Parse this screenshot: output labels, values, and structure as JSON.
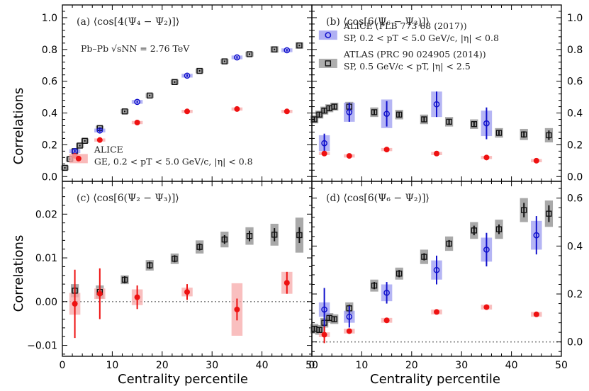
{
  "figure": {
    "xlabel": "Centrality percentile",
    "ylabel": "Correlations"
  },
  "chart_data": [
    {
      "id": "a",
      "type": "scatter",
      "title": "(a) ⟨cos[4(Ψ₄ − Ψ₂)]⟩",
      "annotation": "Pb–Pb √sNN = 2.76 TeV",
      "xlim": [
        0,
        50
      ],
      "ylim": [
        -0.03,
        1.08
      ],
      "yticks": [
        0.0,
        0.2,
        0.4,
        0.6,
        0.8,
        1.0
      ],
      "ytick_labels": [
        "0.0",
        "0.2",
        "0.4",
        "0.6",
        "0.8",
        "1.0"
      ],
      "yaxis_side": "left",
      "legend": [
        {
          "series": "ALICE GE",
          "line1": "ALICE",
          "line2": "GE, 0.2 < pT < 5.0 GeV/c, |η| < 0.8"
        }
      ],
      "series": [
        {
          "name": "ALICE GE",
          "marker": "filled-circle",
          "color": "#ee1111",
          "x": [
            2.5,
            7.5,
            15,
            25,
            35,
            45
          ],
          "y": [
            0.13,
            0.23,
            0.34,
            0.41,
            0.425,
            0.41
          ],
          "err": [
            0.005,
            0.005,
            0.005,
            0.005,
            0.005,
            0.005
          ],
          "sys": [
            0.01,
            0.01,
            0.01,
            0.01,
            0.01,
            0.01
          ]
        },
        {
          "name": "ALICE SP",
          "marker": "open-circle",
          "color": "#1111cc",
          "x": [
            2.5,
            7.5,
            15,
            25,
            35,
            45
          ],
          "y": [
            0.16,
            0.29,
            0.47,
            0.635,
            0.75,
            0.795
          ],
          "err": [
            0.01,
            0.01,
            0.008,
            0.008,
            0.008,
            0.008
          ],
          "sys": [
            0.012,
            0.012,
            0.012,
            0.012,
            0.012,
            0.012
          ]
        },
        {
          "name": "ATLAS SP",
          "marker": "open-square",
          "color": "#111111",
          "x": [
            0.5,
            1.5,
            2.5,
            3.5,
            4.5,
            7.5,
            12.5,
            17.5,
            22.5,
            27.5,
            32.5,
            37.5,
            42.5,
            47.5
          ],
          "y": [
            0.055,
            0.11,
            0.16,
            0.195,
            0.225,
            0.305,
            0.41,
            0.51,
            0.595,
            0.665,
            0.725,
            0.77,
            0.8,
            0.825
          ],
          "err": [
            0.005,
            0.005,
            0.005,
            0.005,
            0.005,
            0.005,
            0.005,
            0.005,
            0.005,
            0.005,
            0.005,
            0.005,
            0.005,
            0.005
          ],
          "sys": [
            0.015,
            0.015,
            0.015,
            0.015,
            0.015,
            0.015,
            0.015,
            0.015,
            0.015,
            0.015,
            0.015,
            0.015,
            0.02,
            0.02
          ]
        }
      ]
    },
    {
      "id": "b",
      "type": "scatter",
      "title": "(b) ⟨cos[6(Ψ₆ − Ψ₃)]⟩",
      "xlim": [
        0,
        50
      ],
      "ylim": [
        -0.03,
        1.08
      ],
      "yticks": [
        0.0,
        0.2,
        0.4,
        0.6,
        0.8,
        1.0
      ],
      "ytick_labels": [
        "0.0",
        "0.2",
        "0.4",
        "0.6",
        "0.8",
        "1.0"
      ],
      "yaxis_side": "right",
      "legend": [
        {
          "series": "ALICE SP",
          "line1": "ALICE (PLB 773 68 (2017))",
          "line2": "SP, 0.2 < pT < 5.0 GeV/c, |η| < 0.8"
        },
        {
          "series": "ATLAS SP",
          "line1": "ATLAS (PRC 90 024905 (2014))",
          "line2": "SP, 0.5 GeV/c < pT, |η| < 2.5"
        }
      ],
      "series": [
        {
          "name": "ALICE GE",
          "marker": "filled-circle",
          "color": "#ee1111",
          "x": [
            2.5,
            7.5,
            15,
            25,
            35,
            45
          ],
          "y": [
            0.145,
            0.13,
            0.17,
            0.145,
            0.12,
            0.1
          ],
          "err": [
            0.005,
            0.005,
            0.005,
            0.005,
            0.005,
            0.005
          ],
          "sys": [
            0.01,
            0.01,
            0.01,
            0.01,
            0.01,
            0.01
          ]
        },
        {
          "name": "ALICE SP",
          "marker": "open-circle",
          "color": "#1111cc",
          "x": [
            2.5,
            7.5,
            15,
            25,
            35,
            45
          ],
          "y": [
            0.21,
            0.405,
            0.395,
            0.455,
            0.335,
            null
          ],
          "err": [
            0.06,
            0.06,
            0.08,
            0.08,
            0.1,
            null
          ],
          "sys": [
            0.05,
            0.06,
            0.09,
            0.08,
            0.08,
            null
          ]
        },
        {
          "name": "ATLAS SP",
          "marker": "open-square",
          "color": "#111111",
          "x": [
            0.5,
            1.5,
            2.5,
            3.5,
            4.5,
            7.5,
            12.5,
            17.5,
            22.5,
            27.5,
            32.5,
            37.5,
            42.5,
            47.5
          ],
          "y": [
            0.36,
            0.39,
            0.415,
            0.43,
            0.44,
            0.44,
            0.405,
            0.39,
            0.36,
            0.345,
            0.33,
            0.275,
            0.265,
            0.26
          ],
          "err": [
            0.015,
            0.015,
            0.015,
            0.015,
            0.015,
            0.015,
            0.015,
            0.015,
            0.015,
            0.015,
            0.015,
            0.015,
            0.02,
            0.03
          ],
          "sys": [
            0.025,
            0.025,
            0.025,
            0.025,
            0.025,
            0.03,
            0.03,
            0.03,
            0.03,
            0.03,
            0.03,
            0.03,
            0.035,
            0.045
          ]
        }
      ]
    },
    {
      "id": "c",
      "type": "scatter",
      "title": "(c) ⟨cos[6(Ψ₂ − Ψ₃)]⟩",
      "xlim": [
        0,
        50
      ],
      "ylim": [
        -0.0125,
        0.0275
      ],
      "yticks": [
        -0.01,
        0.0,
        0.01,
        0.02
      ],
      "ytick_labels": [
        "−0.01",
        "0.00",
        "0.01",
        "0.02"
      ],
      "yaxis_side": "left",
      "zero_line": true,
      "legend": [],
      "series": [
        {
          "name": "ALICE GE",
          "marker": "filled-circle",
          "color": "#ee1111",
          "x": [
            2.5,
            7.5,
            15,
            25,
            35,
            45
          ],
          "y": [
            -0.0005,
            0.0018,
            0.001,
            0.0022,
            -0.0018,
            0.0043
          ],
          "err": [
            0.0078,
            0.0058,
            0.0027,
            0.0018,
            0.0025,
            0.0025
          ],
          "sys": [
            0.0025,
            0.0012,
            0.0018,
            0.001,
            0.006,
            0.0025
          ]
        },
        {
          "name": "ATLAS SP",
          "marker": "open-square",
          "color": "#111111",
          "x": [
            2.5,
            7.5,
            12.5,
            17.5,
            22.5,
            27.5,
            32.5,
            37.5,
            42.5,
            47.5
          ],
          "y": [
            0.0025,
            0.0022,
            0.005,
            0.0083,
            0.0098,
            0.0125,
            0.0142,
            0.015,
            0.0153,
            0.0152
          ],
          "err": [
            0.0008,
            0.0008,
            0.0008,
            0.0008,
            0.0008,
            0.0008,
            0.001,
            0.0012,
            0.0015,
            0.0018
          ],
          "sys": [
            0.0015,
            0.0015,
            0.001,
            0.0012,
            0.0012,
            0.0015,
            0.0018,
            0.002,
            0.0025,
            0.004
          ]
        }
      ]
    },
    {
      "id": "d",
      "type": "scatter",
      "title": "(d) ⟨cos[6(Ψ₆ − Ψ₂)]⟩",
      "xlim": [
        0,
        50
      ],
      "ylim": [
        -0.06,
        0.67
      ],
      "yticks": [
        0.0,
        0.2,
        0.4,
        0.6
      ],
      "ytick_labels": [
        "0.0",
        "0.2",
        "0.4",
        "0.6"
      ],
      "yaxis_side": "right",
      "zero_line": true,
      "legend": [],
      "series": [
        {
          "name": "ALICE GE",
          "marker": "filled-circle",
          "color": "#ee1111",
          "x": [
            2.5,
            7.5,
            15,
            25,
            35,
            45
          ],
          "y": [
            0.03,
            0.045,
            0.09,
            0.125,
            0.145,
            0.115
          ],
          "err": [
            0.035,
            0.005,
            0.005,
            0.005,
            0.005,
            0.005
          ],
          "sys": [
            0.01,
            0.01,
            0.01,
            0.01,
            0.01,
            0.01
          ]
        },
        {
          "name": "ALICE SP",
          "marker": "open-circle",
          "color": "#1111cc",
          "x": [
            2.5,
            7.5,
            15,
            25,
            35,
            45
          ],
          "y": [
            0.135,
            0.105,
            0.205,
            0.3,
            0.385,
            0.445
          ],
          "err": [
            0.09,
            0.045,
            0.045,
            0.06,
            0.07,
            0.08
          ],
          "sys": [
            0.03,
            0.025,
            0.035,
            0.04,
            0.05,
            0.06
          ]
        },
        {
          "name": "ATLAS SP",
          "marker": "open-square",
          "color": "#111111",
          "x": [
            0.5,
            1.5,
            2.5,
            3.5,
            4.5,
            7.5,
            12.5,
            17.5,
            22.5,
            27.5,
            32.5,
            37.5,
            42.5,
            47.5
          ],
          "y": [
            0.055,
            0.05,
            0.08,
            0.1,
            0.095,
            0.14,
            0.235,
            0.285,
            0.355,
            0.41,
            0.465,
            0.47,
            0.55,
            0.535
          ],
          "err": [
            0.012,
            0.012,
            0.012,
            0.012,
            0.012,
            0.015,
            0.015,
            0.015,
            0.015,
            0.015,
            0.02,
            0.02,
            0.03,
            0.035
          ],
          "sys": [
            0.02,
            0.02,
            0.02,
            0.02,
            0.02,
            0.025,
            0.025,
            0.025,
            0.03,
            0.03,
            0.035,
            0.04,
            0.05,
            0.055
          ]
        }
      ]
    }
  ]
}
